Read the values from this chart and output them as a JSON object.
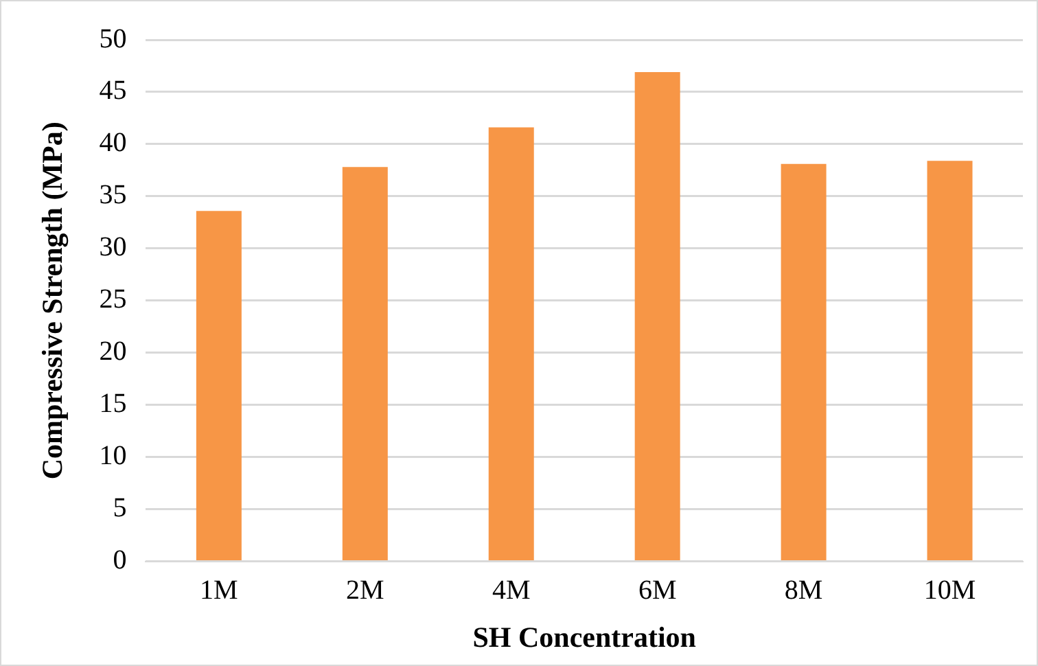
{
  "chart_data": {
    "type": "bar",
    "xlabel": "SH Concentration",
    "ylabel": "Compressive Strength (MPa)",
    "categories": [
      "1M",
      "2M",
      "4M",
      "6M",
      "8M",
      "10M"
    ],
    "values": [
      33.6,
      37.8,
      41.6,
      46.9,
      38.1,
      38.4
    ],
    "color": "#f79646",
    "ylim": [
      0,
      50
    ],
    "yticks": [
      0,
      5,
      10,
      15,
      20,
      25,
      30,
      35,
      40,
      45,
      50
    ],
    "grid": "y",
    "legend": false
  }
}
